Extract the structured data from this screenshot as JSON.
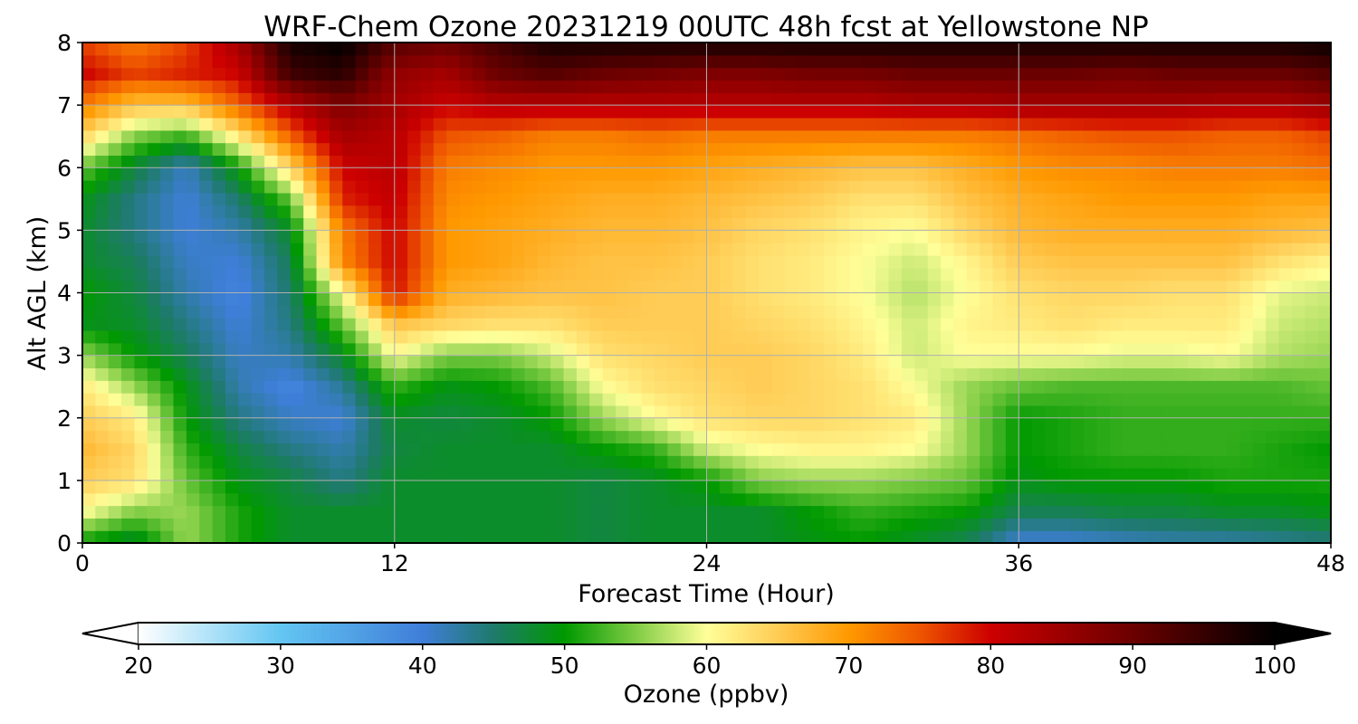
{
  "chart_data": {
    "type": "heatmap",
    "title": "WRF-Chem Ozone  20231219 00UTC 48h fcst at Yellowstone NP",
    "xlabel": "Forecast Time (Hour)",
    "ylabel": "Alt AGL (km)",
    "xlim": [
      0,
      48
    ],
    "ylim": [
      0,
      8
    ],
    "x_ticks": [
      0,
      12,
      24,
      36,
      48
    ],
    "y_ticks": [
      0,
      1,
      2,
      3,
      4,
      5,
      6,
      7,
      8
    ],
    "grid": true,
    "colorbar": {
      "label": "Ozone  (ppbv)",
      "range": [
        20,
        100
      ],
      "ticks": [
        20,
        30,
        40,
        50,
        60,
        70,
        80,
        90,
        100
      ],
      "extend": "both",
      "orientation": "horizontal",
      "placement": "bottom",
      "colormap_stops": [
        {
          "value": 20,
          "color": "#ffffff"
        },
        {
          "value": 30,
          "color": "#63c6f2"
        },
        {
          "value": 40,
          "color": "#3f7ed9"
        },
        {
          "value": 45,
          "color": "#1e7a6b"
        },
        {
          "value": 50,
          "color": "#009900"
        },
        {
          "value": 55,
          "color": "#7fcc44"
        },
        {
          "value": 60,
          "color": "#ffff99"
        },
        {
          "value": 65,
          "color": "#ffcc55"
        },
        {
          "value": 70,
          "color": "#ff9900"
        },
        {
          "value": 75,
          "color": "#ee5500"
        },
        {
          "value": 80,
          "color": "#cc0000"
        },
        {
          "value": 90,
          "color": "#6b0000"
        },
        {
          "value": 100,
          "color": "#000000"
        }
      ],
      "under_color": "#ffffff",
      "over_color": "#000000"
    },
    "grid_x_hours": [
      0,
      2,
      4,
      6,
      8,
      10,
      12,
      14,
      16,
      18,
      20,
      22,
      24,
      26,
      28,
      30,
      32,
      34,
      36,
      38,
      40,
      42,
      44,
      46,
      48
    ],
    "grid_y_km": [
      0,
      0.5,
      1,
      1.5,
      2,
      2.5,
      3,
      3.5,
      4,
      4.5,
      5,
      5.5,
      6,
      6.5,
      7,
      7.5,
      8
    ],
    "z_ozone_ppbv": [
      [
        50,
        47,
        56,
        51,
        48,
        48,
        48,
        48,
        48,
        48,
        47,
        48,
        48,
        48,
        49,
        50,
        48,
        46,
        40,
        40,
        41,
        42,
        42,
        43,
        44
      ],
      [
        60,
        55,
        56,
        51,
        48,
        48,
        48,
        48,
        48,
        48,
        47,
        48,
        48,
        48,
        50,
        52,
        51,
        50,
        46,
        46,
        47,
        47,
        48,
        48,
        49
      ],
      [
        65,
        63,
        54,
        49,
        47,
        44,
        48,
        48,
        48,
        48,
        47,
        48,
        50,
        55,
        56,
        56,
        55,
        54,
        49,
        50,
        50,
        50,
        51,
        51,
        51
      ],
      [
        67,
        64,
        52,
        47,
        44,
        42,
        47,
        48,
        48,
        48,
        50,
        52,
        58,
        60,
        61,
        61,
        60,
        56,
        50,
        51,
        52,
        52,
        52,
        51,
        50
      ],
      [
        65,
        62,
        50,
        44,
        41,
        40,
        48,
        47,
        48,
        50,
        56,
        60,
        63,
        64,
        64,
        63,
        62,
        56,
        50,
        51,
        52,
        52,
        52,
        52,
        52
      ],
      [
        62,
        56,
        49,
        42,
        39,
        43,
        52,
        49,
        50,
        53,
        60,
        63,
        64,
        65,
        64,
        63,
        60,
        56,
        54,
        53,
        53,
        53,
        53,
        53,
        54
      ],
      [
        56,
        50,
        46,
        41,
        42,
        48,
        60,
        55,
        55,
        58,
        63,
        64,
        65,
        65,
        64,
        62,
        58,
        60,
        60,
        60,
        59,
        59,
        60,
        57,
        56
      ],
      [
        49,
        48,
        44,
        40,
        44,
        54,
        66,
        64,
        63,
        63,
        65,
        65,
        65,
        64,
        63,
        61,
        58,
        61,
        62,
        63,
        62,
        62,
        62,
        58,
        57
      ],
      [
        50,
        47,
        42,
        39,
        45,
        60,
        79,
        68,
        67,
        66,
        66,
        65,
        65,
        63,
        62,
        60,
        57,
        60,
        63,
        64,
        64,
        63,
        63,
        59,
        58
      ],
      [
        48,
        46,
        41,
        40,
        46,
        71,
        80,
        70,
        69,
        67,
        66,
        66,
        65,
        63,
        62,
        60,
        58,
        61,
        65,
        66,
        66,
        66,
        66,
        63,
        61
      ],
      [
        48,
        44,
        40,
        42,
        48,
        72,
        80,
        70,
        69,
        68,
        67,
        67,
        66,
        64,
        63,
        61,
        60,
        64,
        67,
        68,
        68,
        68,
        68,
        67,
        66
      ],
      [
        49,
        44,
        40,
        45,
        54,
        78,
        81,
        71,
        70,
        69,
        68,
        68,
        67,
        66,
        65,
        63,
        63,
        66,
        68,
        69,
        70,
        70,
        70,
        69,
        69
      ],
      [
        54,
        47,
        41,
        50,
        64,
        80,
        82,
        72,
        71,
        70,
        70,
        70,
        69,
        68,
        67,
        66,
        66,
        68,
        70,
        71,
        71,
        72,
        72,
        72,
        73
      ],
      [
        64,
        55,
        52,
        62,
        74,
        84,
        82,
        75,
        74,
        72,
        72,
        73,
        72,
        72,
        72,
        72,
        72,
        72,
        73,
        74,
        75,
        75,
        74,
        74,
        76
      ],
      [
        72,
        66,
        66,
        74,
        82,
        88,
        84,
        80,
        82,
        82,
        82,
        82,
        82,
        82,
        82,
        82,
        83,
        83,
        84,
        84,
        84,
        84,
        83,
        83,
        85
      ],
      [
        80,
        76,
        78,
        80,
        94,
        96,
        86,
        84,
        90,
        92,
        90,
        89,
        88,
        88,
        89,
        89,
        90,
        90,
        90,
        90,
        89,
        90,
        90,
        90,
        92
      ],
      [
        76,
        72,
        76,
        84,
        98,
        100,
        92,
        90,
        94,
        98,
        98,
        98,
        98,
        98,
        98,
        98,
        98,
        98,
        98,
        98,
        98,
        98,
        98,
        98,
        99
      ]
    ]
  }
}
